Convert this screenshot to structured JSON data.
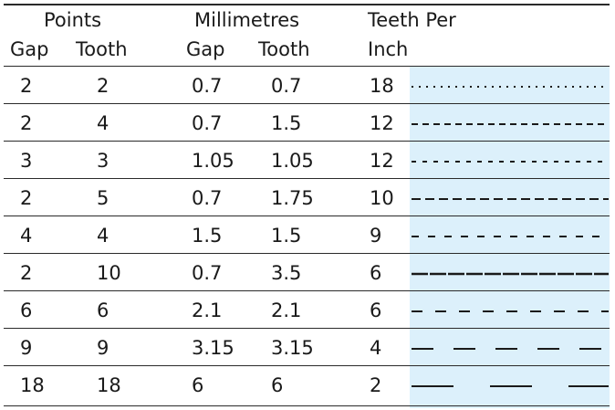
{
  "header": {
    "group_points": "Points",
    "group_mm": "Millimetres",
    "group_tpi_line1": "Teeth Per",
    "group_tpi_line2": "Inch",
    "col_gap": "Gap",
    "col_tooth": "Tooth",
    "col_gap_mm": "Gap",
    "col_tooth_mm": "Tooth"
  },
  "rows": [
    {
      "pt_gap": "2",
      "pt_tooth": "2",
      "mm_gap": "0.7",
      "mm_tooth": "0.7",
      "tpi": "18"
    },
    {
      "pt_gap": "2",
      "pt_tooth": "4",
      "mm_gap": "0.7",
      "mm_tooth": "1.5",
      "tpi": "12"
    },
    {
      "pt_gap": "3",
      "pt_tooth": "3",
      "mm_gap": "1.05",
      "mm_tooth": "1.05",
      "tpi": "12"
    },
    {
      "pt_gap": "2",
      "pt_tooth": "5",
      "mm_gap": "0.7",
      "mm_tooth": "1.75",
      "tpi": "10"
    },
    {
      "pt_gap": "4",
      "pt_tooth": "4",
      "mm_gap": "1.5",
      "mm_tooth": "1.5",
      "tpi": "9"
    },
    {
      "pt_gap": "2",
      "pt_tooth": "10",
      "mm_gap": "0.7",
      "mm_tooth": "3.5",
      "tpi": "6"
    },
    {
      "pt_gap": "6",
      "pt_tooth": "6",
      "mm_gap": "2.1",
      "mm_tooth": "2.1",
      "tpi": "6"
    },
    {
      "pt_gap": "9",
      "pt_tooth": "9",
      "mm_gap": "3.15",
      "mm_tooth": "3.15",
      "tpi": "4"
    },
    {
      "pt_gap": "18",
      "pt_tooth": "18",
      "mm_gap": "6",
      "mm_tooth": "6",
      "tpi": "2"
    }
  ],
  "colors": {
    "preview_background": "#dcf0fb",
    "rule": "#2a2a2a",
    "stroke": "#1a1a1a"
  }
}
